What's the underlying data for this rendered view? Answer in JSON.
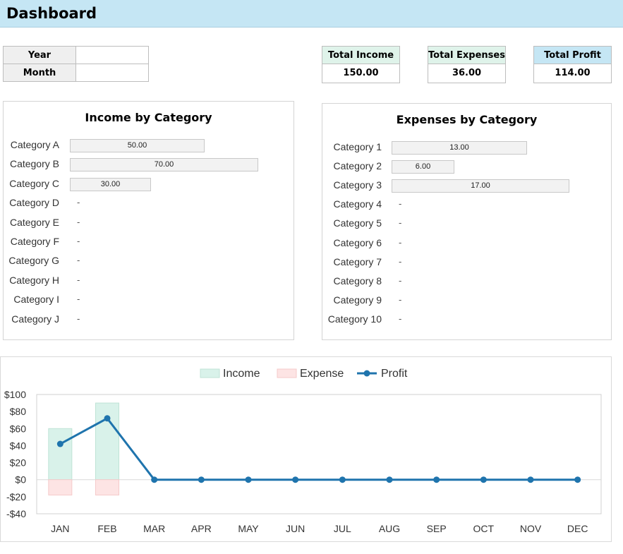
{
  "header": {
    "title": "Dashboard"
  },
  "filters": [
    {
      "label": "Year",
      "value": ""
    },
    {
      "label": "Month",
      "value": ""
    }
  ],
  "kpis": {
    "income": {
      "label": "Total Income",
      "value": "150.00",
      "color": "#dff3ea"
    },
    "expenses": {
      "label": "Total Expenses",
      "value": "36.00",
      "color": "#dff3ea"
    },
    "profit": {
      "label": "Total Profit",
      "value": "114.00",
      "color": "#c5e6f4"
    }
  },
  "income_by_category": {
    "title": "Income by Category",
    "rows": [
      {
        "label": "Category A",
        "value": 50,
        "text": "50.00"
      },
      {
        "label": "Category B",
        "value": 70,
        "text": "70.00"
      },
      {
        "label": "Category C",
        "value": 30,
        "text": "30.00"
      },
      {
        "label": "Category D",
        "value": 0,
        "text": "-"
      },
      {
        "label": "Category E",
        "value": 0,
        "text": "-"
      },
      {
        "label": "Category F",
        "value": 0,
        "text": "-"
      },
      {
        "label": "Category G",
        "value": 0,
        "text": "-"
      },
      {
        "label": "Category H",
        "value": 0,
        "text": "-"
      },
      {
        "label": "Category I",
        "value": 0,
        "text": "-"
      },
      {
        "label": "Category J",
        "value": 0,
        "text": "-"
      }
    ]
  },
  "expenses_by_category": {
    "title": "Expenses by Category",
    "rows": [
      {
        "label": "Category 1",
        "value": 13,
        "text": "13.00"
      },
      {
        "label": "Category 2",
        "value": 6,
        "text": "6.00"
      },
      {
        "label": "Category 3",
        "value": 17,
        "text": "17.00"
      },
      {
        "label": "Category 4",
        "value": 0,
        "text": "-"
      },
      {
        "label": "Category 5",
        "value": 0,
        "text": "-"
      },
      {
        "label": "Category 6",
        "value": 0,
        "text": "-"
      },
      {
        "label": "Category 7",
        "value": 0,
        "text": "-"
      },
      {
        "label": "Category 8",
        "value": 0,
        "text": "-"
      },
      {
        "label": "Category 9",
        "value": 0,
        "text": "-"
      },
      {
        "label": "Category 10",
        "value": 0,
        "text": "-"
      }
    ]
  },
  "chart_data": {
    "type": "bar",
    "categories": [
      "JAN",
      "FEB",
      "MAR",
      "APR",
      "MAY",
      "JUN",
      "JUL",
      "AUG",
      "SEP",
      "OCT",
      "NOV",
      "DEC"
    ],
    "series": [
      {
        "name": "Income",
        "type": "bar",
        "color": "#d9f2ea",
        "values": [
          60,
          90,
          0,
          0,
          0,
          0,
          0,
          0,
          0,
          0,
          0,
          0
        ]
      },
      {
        "name": "Expense",
        "type": "bar",
        "color": "#fde4e4",
        "values": [
          -18,
          -18,
          0,
          0,
          0,
          0,
          0,
          0,
          0,
          0,
          0,
          0
        ]
      },
      {
        "name": "Profit",
        "type": "line",
        "color": "#1f74ad",
        "values": [
          42,
          72,
          0,
          0,
          0,
          0,
          0,
          0,
          0,
          0,
          0,
          0
        ]
      }
    ],
    "ylim": [
      -40,
      100
    ],
    "yticks": [
      100,
      80,
      60,
      40,
      20,
      0,
      -20,
      -40
    ],
    "ytick_labels": [
      "$100",
      "$80",
      "$60",
      "$40",
      "$20",
      "$0",
      "-$20",
      "-$40"
    ],
    "legend_position": "top-center",
    "grid": false
  }
}
